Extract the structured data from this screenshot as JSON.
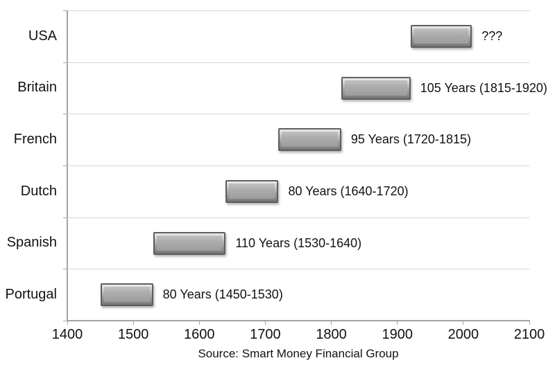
{
  "chart_data": {
    "type": "bar",
    "subtype": "horizontal-range-gantt",
    "title": "",
    "categories": [
      "USA",
      "Britain",
      "French",
      "Dutch",
      "Spanish",
      "Portugal"
    ],
    "series": [
      {
        "category": "USA",
        "start": 1920,
        "end": 2013,
        "label": "???"
      },
      {
        "category": "Britain",
        "start": 1815,
        "end": 1920,
        "label": "105 Years (1815-1920)"
      },
      {
        "category": "French",
        "start": 1720,
        "end": 1815,
        "label": "95 Years (1720-1815)"
      },
      {
        "category": "Dutch",
        "start": 1640,
        "end": 1720,
        "label": "80 Years (1640-1720)"
      },
      {
        "category": "Spanish",
        "start": 1530,
        "end": 1640,
        "label": "110 Years (1530-1640)"
      },
      {
        "category": "Portugal",
        "start": 1450,
        "end": 1530,
        "label": "80 Years (1450-1530)"
      }
    ],
    "xlim": [
      1400,
      2100
    ],
    "x_ticks": [
      "1400",
      "1500",
      "1600",
      "1700",
      "1800",
      "1900",
      "2000",
      "2100"
    ],
    "grid": "horizontal-row-separators",
    "legend": "none",
    "source": "Source: Smart Money Financial Group",
    "colors": {
      "bar_fill": "#a8a8a8",
      "bar_border": "#5e5e5e",
      "gridline": "#d6d6d6",
      "axis": "#a3a3a3",
      "text": "#111111",
      "background": "#ffffff"
    }
  }
}
